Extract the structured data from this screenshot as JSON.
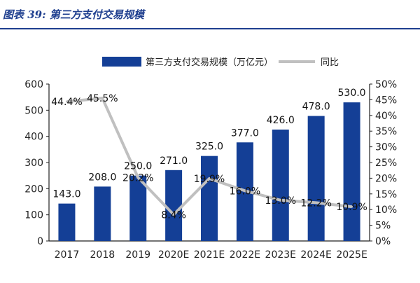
{
  "figure": {
    "title": "图表 39: 第三方支付交易规模"
  },
  "colors": {
    "bar": "#143f96",
    "line": "#c0c0c0",
    "axis": "#222222",
    "header": "#1f3f8f"
  },
  "chart_data": {
    "type": "bar",
    "title": "",
    "categories": [
      "2017",
      "2018",
      "2019",
      "2020E",
      "2021E",
      "2022E",
      "2023E",
      "2024E",
      "2025E"
    ],
    "series": [
      {
        "name": "第三方支付交易规模（万亿元）",
        "type": "bar",
        "axis": "left",
        "values": [
          143.0,
          208.0,
          250.0,
          271.0,
          325.0,
          377.0,
          426.0,
          478.0,
          530.0
        ],
        "labels": [
          "143.0",
          "208.0",
          "250.0",
          "271.0",
          "325.0",
          "377.0",
          "426.0",
          "478.0",
          "530.0"
        ]
      },
      {
        "name": "同比",
        "type": "line",
        "axis": "right",
        "values": [
          44.4,
          45.5,
          20.2,
          8.4,
          19.9,
          16.0,
          13.0,
          12.2,
          10.9
        ],
        "labels": [
          "44.4%",
          "45.5%",
          "20.2%",
          "8.4%",
          "19.9%",
          "16.0%",
          "13.0%",
          "12.2%",
          "10.9%"
        ]
      }
    ],
    "y_left": {
      "min": 0,
      "max": 600,
      "ticks": [
        "0",
        "100",
        "200",
        "300",
        "400",
        "500",
        "600"
      ]
    },
    "y_right": {
      "min": 0,
      "max": 50,
      "ticks": [
        "0%",
        "5%",
        "10%",
        "15%",
        "20%",
        "25%",
        "30%",
        "35%",
        "40%",
        "45%",
        "50%"
      ]
    },
    "grid": false,
    "legend_position": "top"
  }
}
